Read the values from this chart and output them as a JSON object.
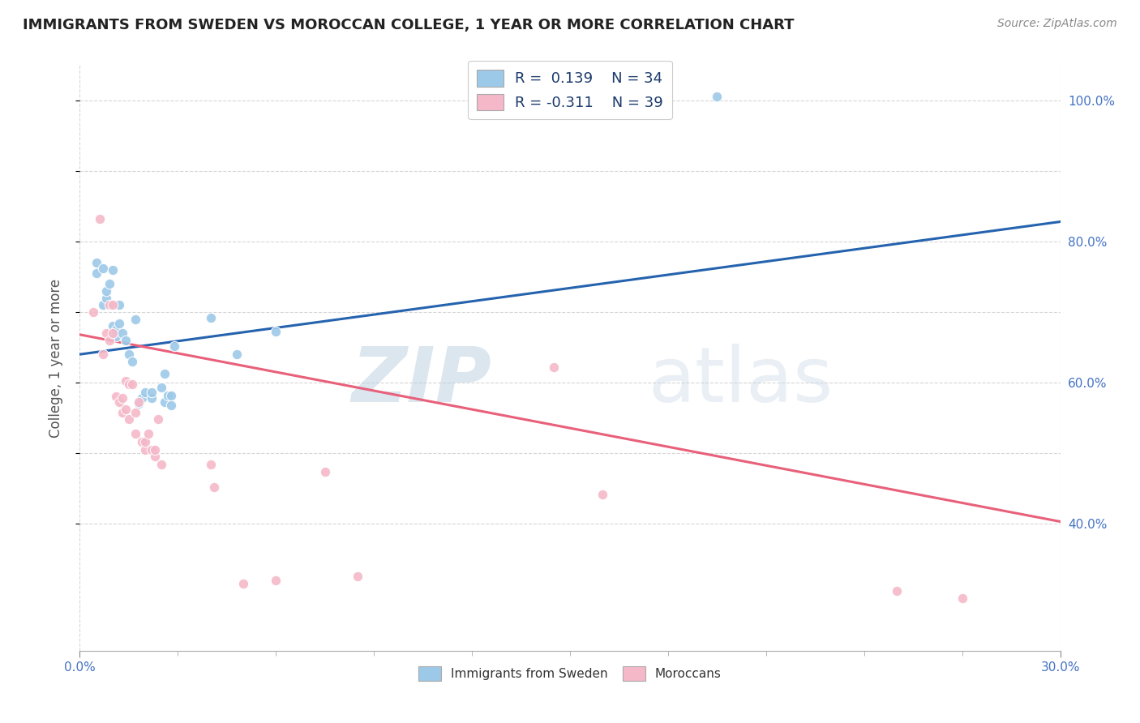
{
  "title": "IMMIGRANTS FROM SWEDEN VS MOROCCAN COLLEGE, 1 YEAR OR MORE CORRELATION CHART",
  "source": "Source: ZipAtlas.com",
  "ylabel": "College, 1 year or more",
  "xlim": [
    0.0,
    0.3
  ],
  "ylim": [
    0.22,
    1.05
  ],
  "sweden_R": 0.139,
  "sweden_N": 34,
  "morocco_R": -0.311,
  "morocco_N": 39,
  "sweden_color": "#9dc9e8",
  "morocco_color": "#f5b8c8",
  "sweden_line_color": "#2563ae",
  "morocco_line_color": "#e8607a",
  "watermark_zip": "ZIP",
  "watermark_atlas": "atlas",
  "sweden_scatter_x": [
    0.005,
    0.005,
    0.007,
    0.007,
    0.008,
    0.008,
    0.009,
    0.01,
    0.01,
    0.011,
    0.011,
    0.012,
    0.012,
    0.013,
    0.014,
    0.015,
    0.016,
    0.017,
    0.018,
    0.019,
    0.02,
    0.022,
    0.022,
    0.025,
    0.026,
    0.026,
    0.027,
    0.028,
    0.028,
    0.029,
    0.04,
    0.048,
    0.06,
    0.195
  ],
  "sweden_scatter_y": [
    0.755,
    0.77,
    0.762,
    0.71,
    0.72,
    0.73,
    0.74,
    0.68,
    0.76,
    0.665,
    0.675,
    0.684,
    0.71,
    0.67,
    0.66,
    0.64,
    0.63,
    0.69,
    0.57,
    0.578,
    0.586,
    0.578,
    0.586,
    0.593,
    0.613,
    0.573,
    0.582,
    0.582,
    0.568,
    0.652,
    0.692,
    0.64,
    0.672,
    1.005
  ],
  "morocco_scatter_x": [
    0.004,
    0.006,
    0.007,
    0.008,
    0.009,
    0.009,
    0.01,
    0.01,
    0.011,
    0.012,
    0.013,
    0.013,
    0.014,
    0.014,
    0.015,
    0.015,
    0.016,
    0.017,
    0.017,
    0.018,
    0.019,
    0.02,
    0.02,
    0.021,
    0.022,
    0.023,
    0.023,
    0.024,
    0.025,
    0.04,
    0.041,
    0.05,
    0.06,
    0.075,
    0.085,
    0.145,
    0.16,
    0.25,
    0.27
  ],
  "morocco_scatter_y": [
    0.7,
    0.832,
    0.64,
    0.67,
    0.66,
    0.71,
    0.67,
    0.71,
    0.58,
    0.572,
    0.578,
    0.558,
    0.562,
    0.602,
    0.548,
    0.598,
    0.598,
    0.528,
    0.558,
    0.572,
    0.516,
    0.505,
    0.516,
    0.528,
    0.505,
    0.495,
    0.505,
    0.548,
    0.484,
    0.484,
    0.452,
    0.315,
    0.32,
    0.474,
    0.325,
    0.622,
    0.442,
    0.305,
    0.295
  ],
  "sweden_trend_y_start": 0.64,
  "sweden_trend_y_end": 0.828,
  "morocco_trend_y_start": 0.668,
  "morocco_trend_y_end": 0.403,
  "xtick_minor_count": 9,
  "right_ytick_vals": [
    0.4,
    0.6,
    0.8,
    1.0
  ],
  "right_ytick_labels": [
    "40.0%",
    "60.0%",
    "80.0%",
    "100.0%"
  ]
}
